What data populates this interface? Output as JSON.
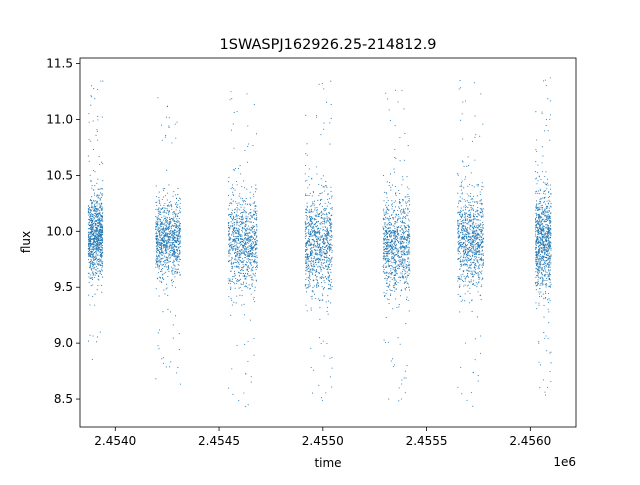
{
  "chart_data": {
    "type": "scatter",
    "title": "1SWASPJ162926.25-214812.9",
    "xlabel": "time",
    "ylabel": "flux",
    "x_offset_label": "1e6",
    "xlim": [
      2453830,
      2456220
    ],
    "ylim": [
      8.25,
      11.55
    ],
    "x_ticks": [
      2454000,
      2454500,
      2455000,
      2455500,
      2456000
    ],
    "x_tick_labels": [
      "2.4540",
      "2.4545",
      "2.4550",
      "2.4555",
      "2.4560"
    ],
    "y_ticks": [
      8.5,
      9.0,
      9.5,
      10.0,
      10.5,
      11.0,
      11.5
    ],
    "y_tick_labels": [
      "8.5",
      "9.0",
      "9.5",
      "10.0",
      "10.5",
      "11.0",
      "11.5"
    ],
    "grid": false,
    "marker_color": "#1f77b4",
    "series": [
      {
        "name": "",
        "seasons": [
          {
            "x_start": 2453870,
            "x_end": 2453940,
            "median": 9.95,
            "spread": 0.18,
            "min": 8.8,
            "max": 11.38
          },
          {
            "x_start": 2454195,
            "x_end": 2454315,
            "median": 9.92,
            "spread": 0.17,
            "min": 8.45,
            "max": 11.2
          },
          {
            "x_start": 2454545,
            "x_end": 2454685,
            "median": 9.9,
            "spread": 0.2,
            "min": 8.4,
            "max": 11.25
          },
          {
            "x_start": 2454915,
            "x_end": 2455045,
            "median": 9.9,
            "spread": 0.22,
            "min": 8.4,
            "max": 11.35
          },
          {
            "x_start": 2455290,
            "x_end": 2455420,
            "median": 9.87,
            "spread": 0.22,
            "min": 8.45,
            "max": 11.35
          },
          {
            "x_start": 2455650,
            "x_end": 2455775,
            "median": 9.92,
            "spread": 0.2,
            "min": 8.4,
            "max": 11.35
          },
          {
            "x_start": 2456025,
            "x_end": 2456100,
            "median": 9.92,
            "spread": 0.22,
            "min": 8.45,
            "max": 11.38
          }
        ]
      }
    ]
  }
}
